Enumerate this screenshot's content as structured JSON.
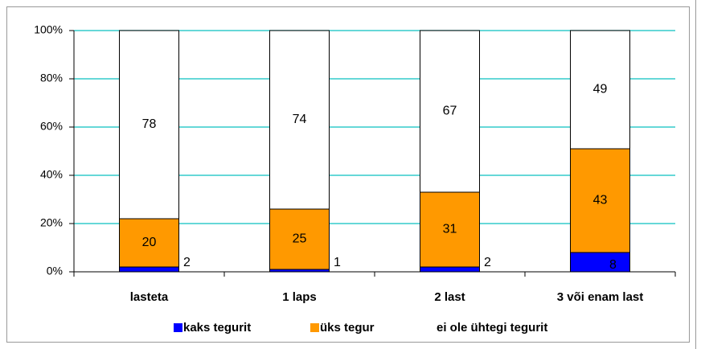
{
  "chart_data": {
    "type": "stacked_bar_percent",
    "categories": [
      "lasteta",
      "1 laps",
      "2 last",
      "3 või enam last"
    ],
    "series": [
      {
        "name": "kaks tegurit",
        "color": "#0000ff",
        "values": [
          2,
          1,
          2,
          8
        ]
      },
      {
        "name": "üks tegur",
        "color": "#ff9900",
        "values": [
          20,
          25,
          31,
          43
        ]
      },
      {
        "name": "ei ole ühtegi tegurit",
        "color": "#ffffff",
        "values": [
          78,
          74,
          67,
          49
        ]
      }
    ],
    "ylim": [
      0,
      100
    ],
    "yticks": [
      {
        "value": 0,
        "label": "0%"
      },
      {
        "value": 20,
        "label": "20%"
      },
      {
        "value": 40,
        "label": "40%"
      },
      {
        "value": 60,
        "label": "60%"
      },
      {
        "value": 80,
        "label": "80%"
      },
      {
        "value": 100,
        "label": "100%"
      }
    ],
    "grid": true,
    "grid_color": "#33cccc",
    "legend": "bottom"
  }
}
